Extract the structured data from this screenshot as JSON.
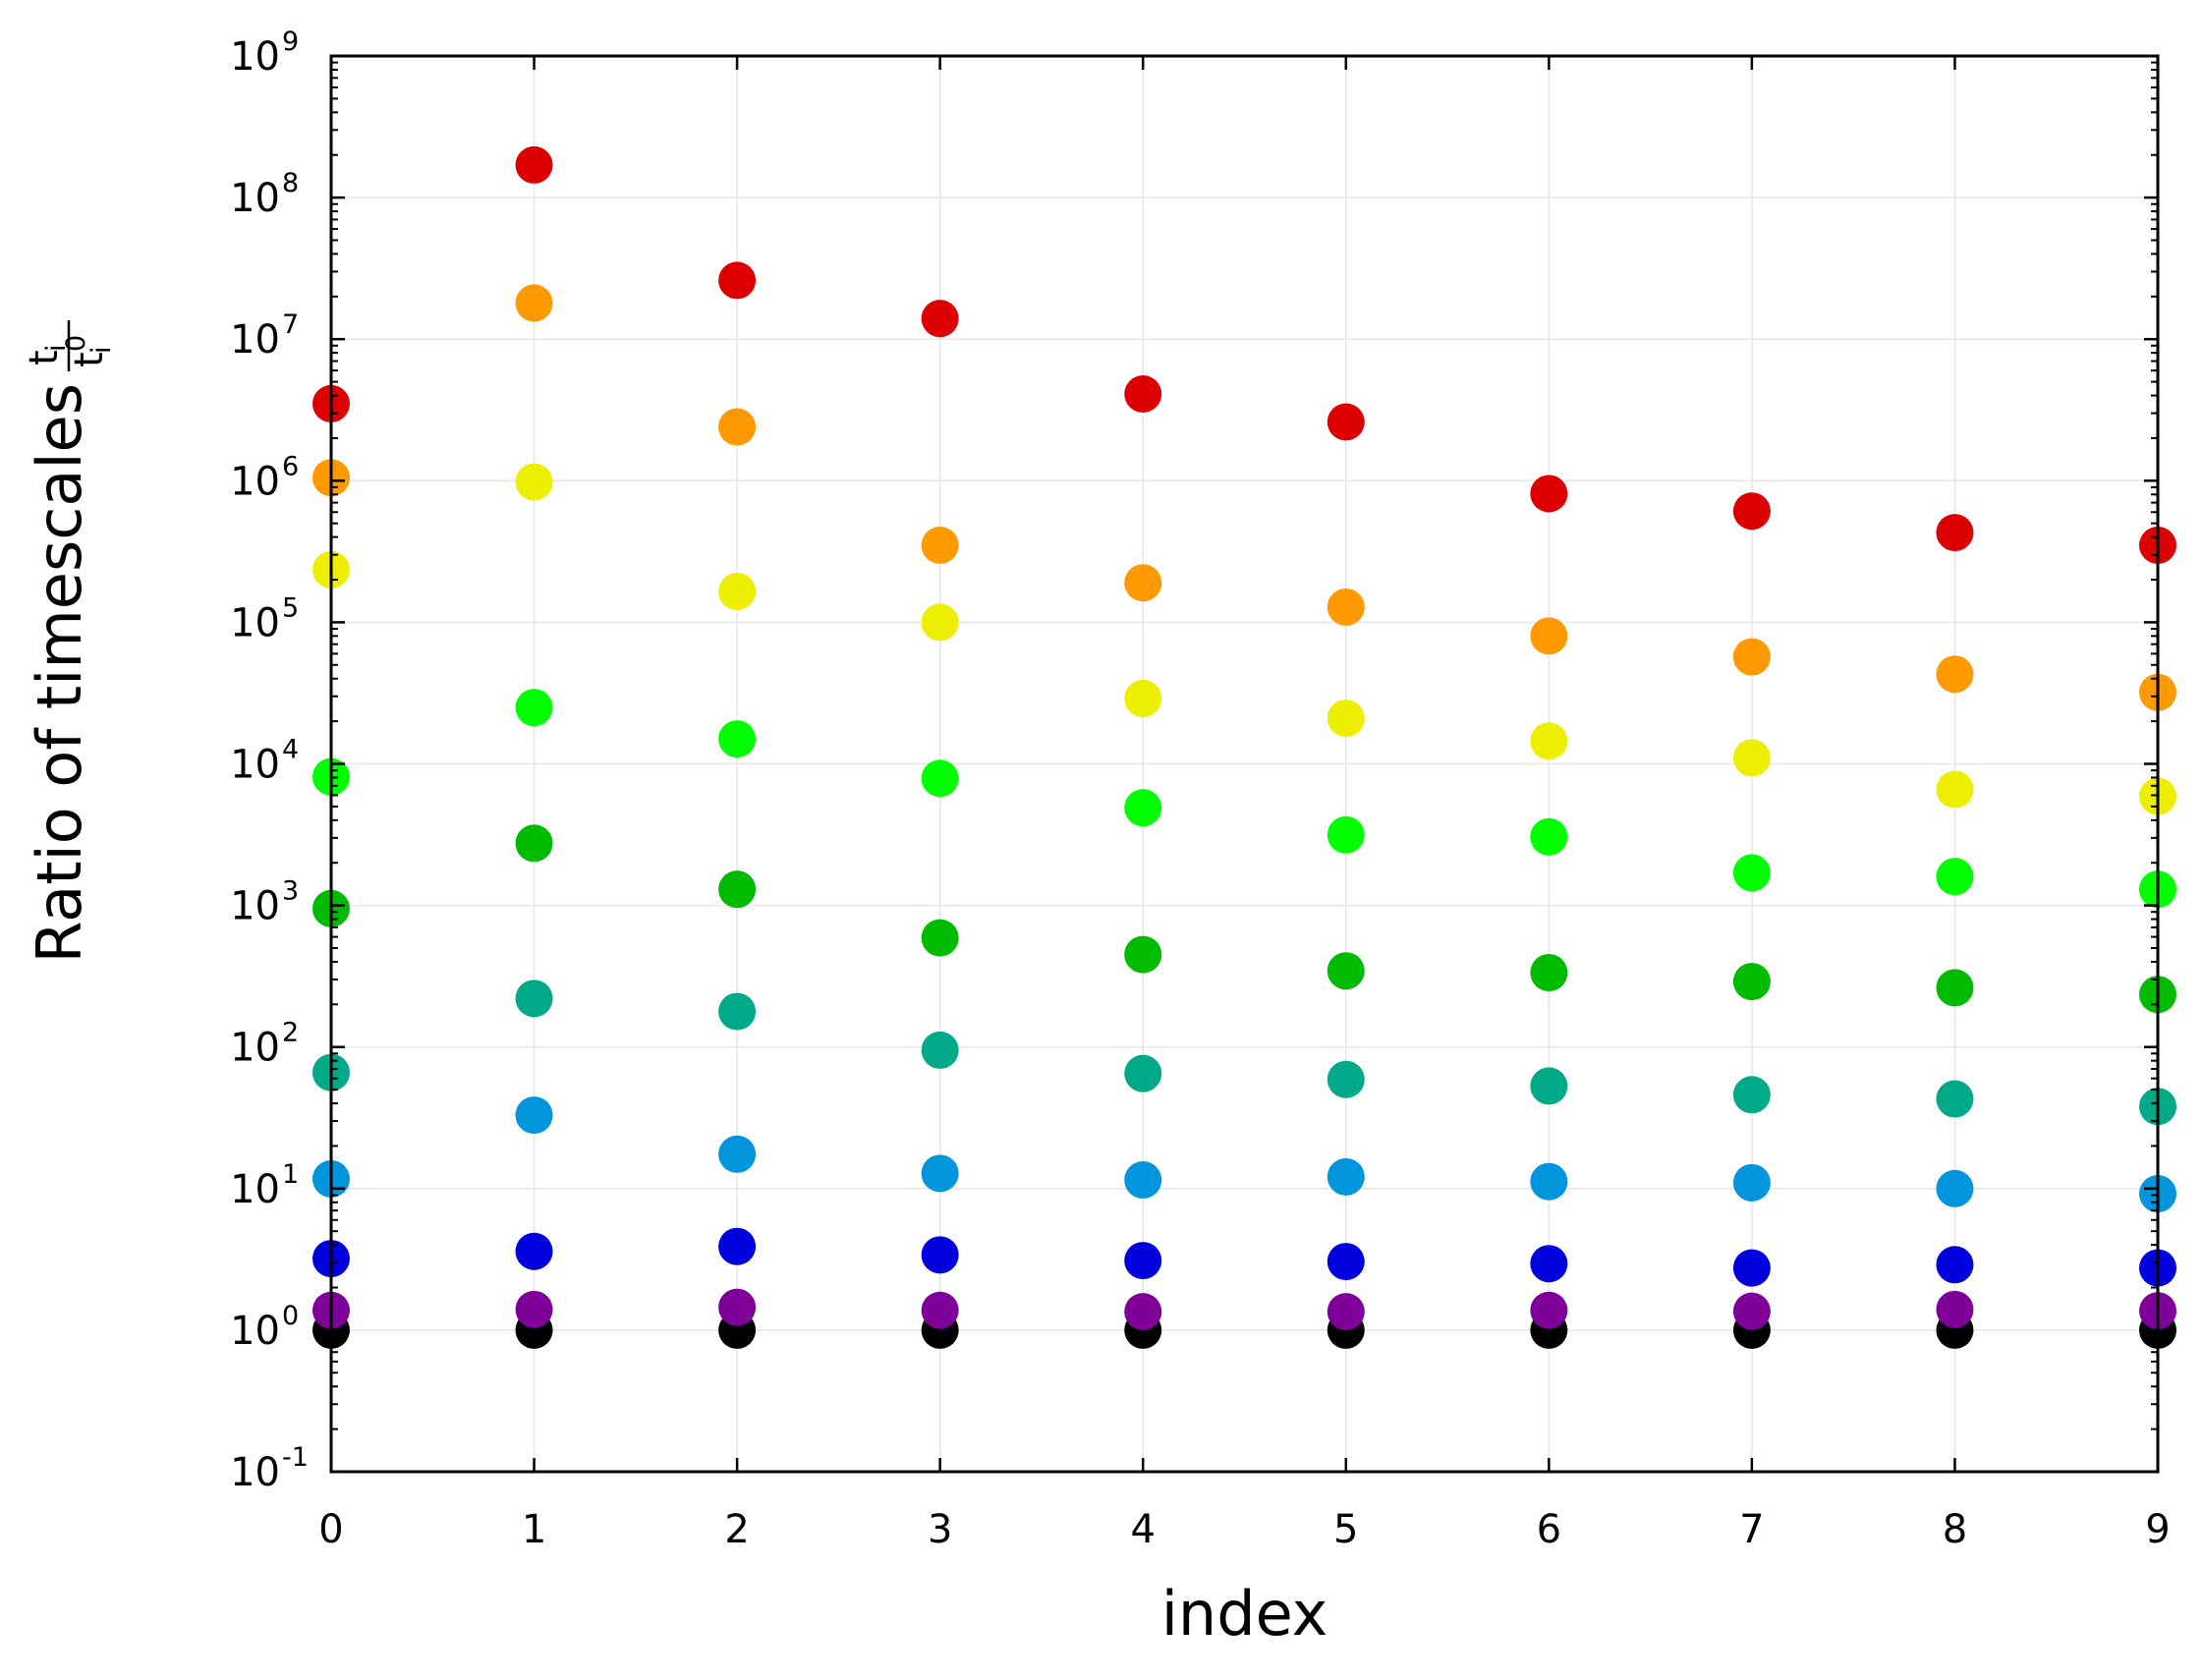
{
  "chart_data": {
    "type": "scatter",
    "xlabel": "index",
    "ylabel": "Ratio of timescales",
    "ylabel_fraction": {
      "numerator": "t",
      "numerator_sub": "i",
      "denominator": "t",
      "denominator_sub": "i",
      "denominator_sup": "0"
    },
    "xlim": [
      0,
      9
    ],
    "ylim": [
      0.1,
      1000000000
    ],
    "yscale": "log",
    "grid": true,
    "x_ticks": [
      "0",
      "1",
      "2",
      "3",
      "4",
      "5",
      "6",
      "7",
      "8",
      "9"
    ],
    "y_ticks": [
      {
        "base": "10",
        "exp": "-1"
      },
      {
        "base": "10",
        "exp": "0"
      },
      {
        "base": "10",
        "exp": "1"
      },
      {
        "base": "10",
        "exp": "2"
      },
      {
        "base": "10",
        "exp": "3"
      },
      {
        "base": "10",
        "exp": "4"
      },
      {
        "base": "10",
        "exp": "5"
      },
      {
        "base": "10",
        "exp": "6"
      },
      {
        "base": "10",
        "exp": "7"
      },
      {
        "base": "10",
        "exp": "8"
      },
      {
        "base": "10",
        "exp": "9"
      }
    ],
    "x": [
      0,
      1,
      2,
      3,
      4,
      5,
      6,
      7,
      8,
      9
    ],
    "series": [
      {
        "color": "#000000",
        "values": [
          1,
          1,
          1,
          1,
          1,
          1,
          1,
          1,
          1,
          1
        ]
      },
      {
        "color": "#7f0099",
        "values": [
          1.38,
          1.4,
          1.45,
          1.38,
          1.35,
          1.35,
          1.38,
          1.36,
          1.4,
          1.37
        ]
      },
      {
        "color": "#0000dd",
        "values": [
          3.2,
          3.6,
          3.9,
          3.4,
          3.1,
          3.05,
          2.95,
          2.75,
          2.9,
          2.75
        ]
      },
      {
        "color": "#0095dd",
        "values": [
          11.7,
          33,
          17.5,
          12.8,
          11.5,
          12.1,
          11.2,
          11,
          10,
          9.2
        ]
      },
      {
        "color": "#00aa88",
        "values": [
          66,
          220,
          178,
          95,
          65,
          59,
          53,
          46,
          43,
          38
        ]
      },
      {
        "color": "#00bb00",
        "values": [
          950,
          2750,
          1300,
          590,
          450,
          345,
          335,
          290,
          262,
          235
        ]
      },
      {
        "color": "#00ff00",
        "values": [
          8100,
          25000,
          15000,
          7900,
          4900,
          3150,
          3050,
          1700,
          1600,
          1300
        ]
      },
      {
        "color": "#eeee00",
        "values": [
          235000,
          980000,
          165000,
          100000,
          29000,
          21000,
          14500,
          11000,
          6600,
          5900
        ]
      },
      {
        "color": "#ff9900",
        "values": [
          1050000,
          18000000,
          2400000,
          350000,
          190000,
          128000,
          80000,
          57000,
          43000,
          32000
        ]
      },
      {
        "color": "#dd0000",
        "values": [
          3500000,
          170000000,
          26000000,
          14000000,
          4100000,
          2600000,
          810000,
          610000,
          430000,
          350000
        ]
      }
    ]
  }
}
